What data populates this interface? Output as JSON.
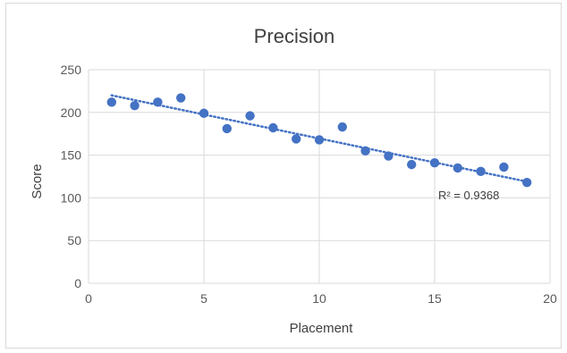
{
  "chart_data": {
    "type": "scatter",
    "title": "Precision",
    "xlabel": "Placement",
    "ylabel": "Score",
    "xlim": [
      0,
      20
    ],
    "ylim": [
      0,
      250
    ],
    "xticks": [
      0,
      5,
      10,
      15,
      20
    ],
    "yticks": [
      0,
      50,
      100,
      150,
      200,
      250
    ],
    "grid": "vertical and horizontal major gridlines",
    "series": [
      {
        "color": "#4472C4",
        "points": [
          {
            "x": 1,
            "y": 212
          },
          {
            "x": 2,
            "y": 208
          },
          {
            "x": 3,
            "y": 212
          },
          {
            "x": 4,
            "y": 217
          },
          {
            "x": 5,
            "y": 199
          },
          {
            "x": 6,
            "y": 181
          },
          {
            "x": 7,
            "y": 196
          },
          {
            "x": 8,
            "y": 182
          },
          {
            "x": 9,
            "y": 169
          },
          {
            "x": 10,
            "y": 168
          },
          {
            "x": 11,
            "y": 183
          },
          {
            "x": 12,
            "y": 155
          },
          {
            "x": 13,
            "y": 149
          },
          {
            "x": 14,
            "y": 139
          },
          {
            "x": 15,
            "y": 141
          },
          {
            "x": 16,
            "y": 135
          },
          {
            "x": 17,
            "y": 131
          },
          {
            "x": 18,
            "y": 136
          },
          {
            "x": 19,
            "y": 118
          }
        ]
      }
    ],
    "trendline": {
      "type": "linear",
      "style": "dotted",
      "color": "#4472C4",
      "start": {
        "x": 1,
        "y": 220
      },
      "end": {
        "x": 19,
        "y": 119
      },
      "r_squared_label": "R² = 0.9368"
    }
  }
}
